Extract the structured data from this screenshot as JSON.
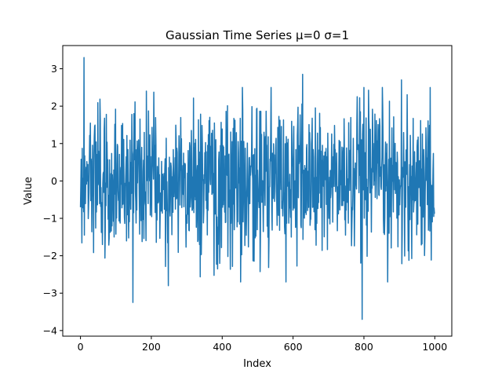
{
  "chart_data": {
    "type": "line",
    "title": "Gaussian Time Series   μ=0   σ=1",
    "xlabel": "Index",
    "ylabel": "Value",
    "xlim": [
      -50,
      1048
    ],
    "ylim": [
      -4.15,
      3.62
    ],
    "x_ticks": [
      0,
      200,
      400,
      600,
      800,
      1000
    ],
    "y_ticks": [
      -4,
      -3,
      -2,
      -1,
      0,
      1,
      2,
      3
    ],
    "grid": false,
    "legend": "none",
    "series": [
      {
        "color": "#1f77b4",
        "x_start": 0,
        "x_step": 1,
        "n_points": 1000,
        "distribution": "gaussian",
        "mean": 0,
        "std": 1,
        "visible_extremes": [
          {
            "x": 10,
            "y": 3.3
          },
          {
            "x": 148,
            "y": -3.25
          },
          {
            "x": 248,
            "y": -2.8
          },
          {
            "x": 627,
            "y": 2.85
          },
          {
            "x": 795,
            "y": -3.7
          },
          {
            "x": 906,
            "y": 2.7
          }
        ]
      }
    ]
  }
}
